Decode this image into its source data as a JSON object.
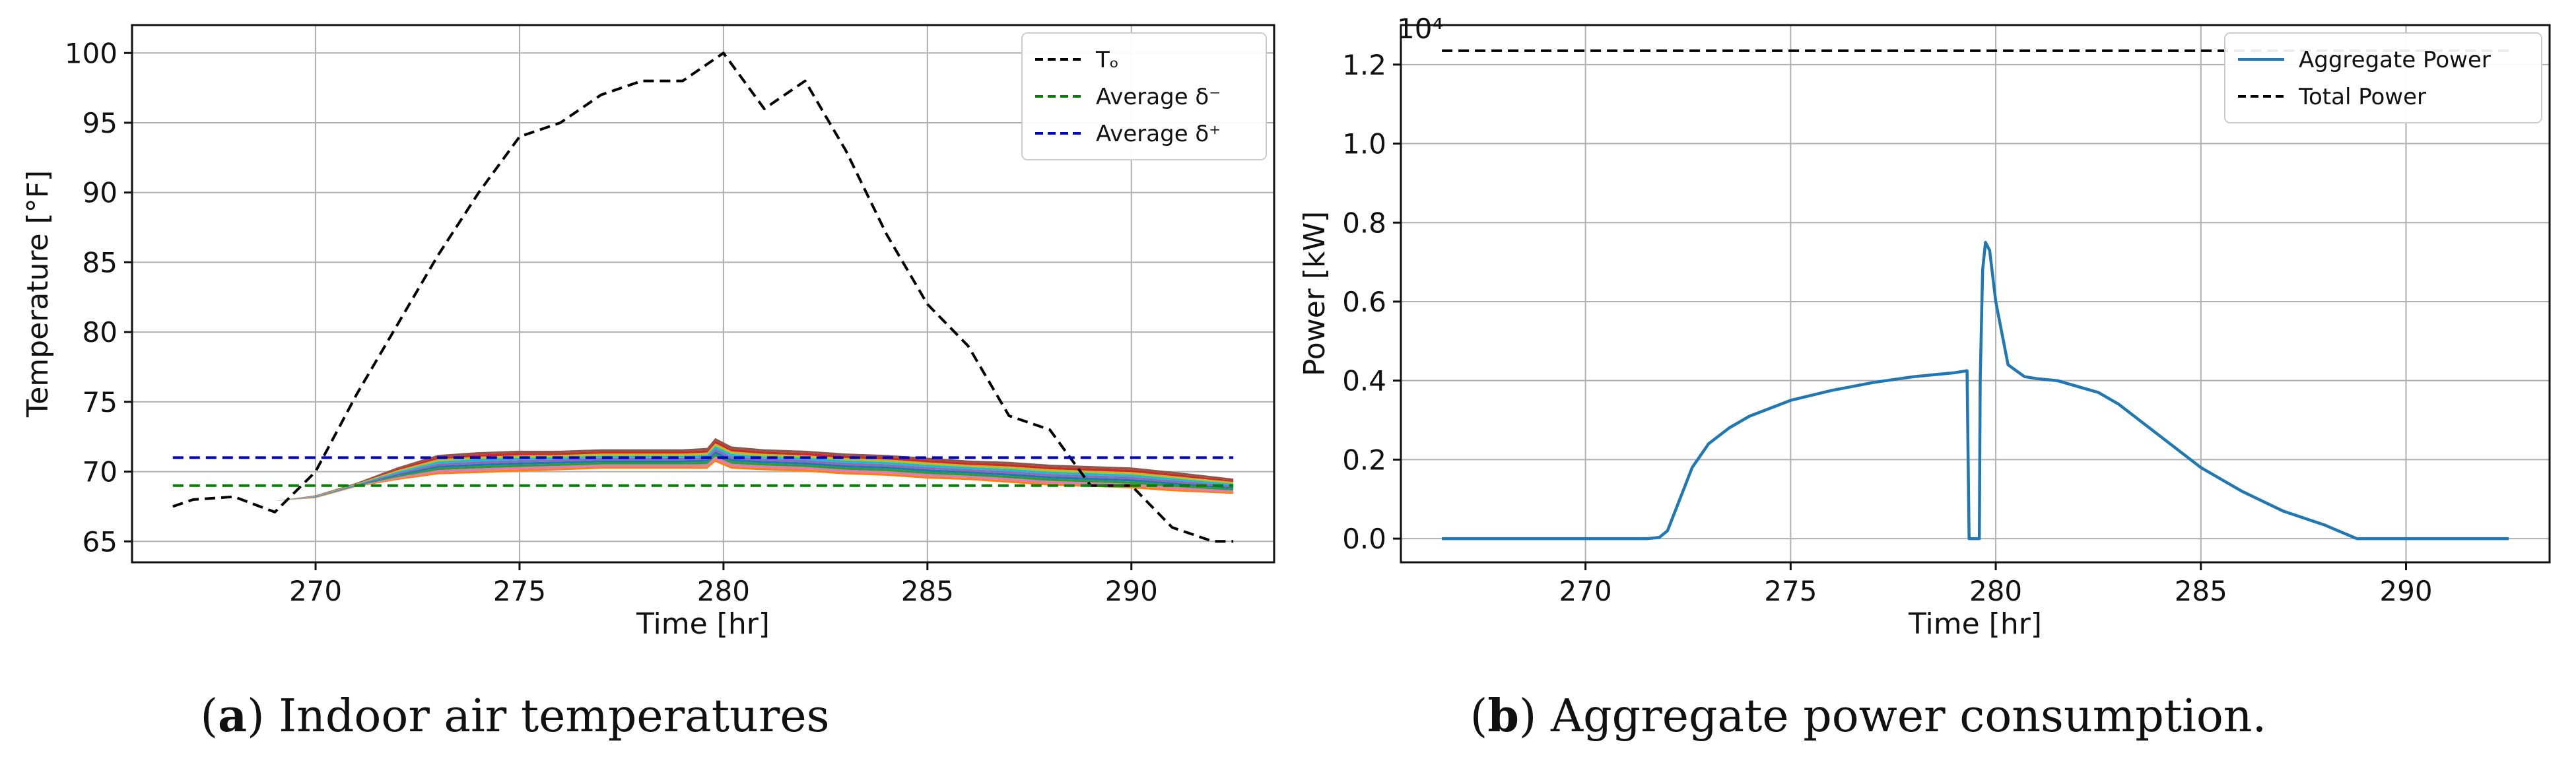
{
  "chart_data": [
    {
      "type": "line",
      "caption_label": "a",
      "caption_text": "Indoor air temperatures",
      "xlabel": "Time [hr]",
      "ylabel": "Temperature [°F]",
      "xlim": [
        265.5,
        293.5
      ],
      "ylim": [
        63.5,
        102
      ],
      "xticks": [
        270,
        275,
        280,
        285,
        290
      ],
      "yticks": [
        65,
        70,
        75,
        80,
        85,
        90,
        95,
        100
      ],
      "grid": true,
      "legend_position": "top-right",
      "legend": [
        {
          "label": "Tₒ",
          "color": "#000000",
          "dash": "dashed"
        },
        {
          "label": "Average δ⁻",
          "color": "#008000",
          "dash": "dashed"
        },
        {
          "label": "Average δ⁺",
          "color": "#0000cc",
          "dash": "dashed"
        }
      ],
      "series": [
        {
          "name": "Tₒ",
          "color": "#000000",
          "dash": "dashed",
          "x": [
            266.5,
            267,
            268,
            269,
            270,
            271,
            272,
            273,
            274,
            275,
            276,
            277,
            278,
            279,
            280,
            281,
            282,
            283,
            284,
            285,
            286,
            287,
            288,
            289,
            290,
            291,
            292,
            292.5
          ],
          "y": [
            67.5,
            68,
            68.2,
            67.1,
            70,
            75.5,
            80.5,
            85.5,
            90,
            94,
            95,
            97,
            98,
            98,
            100,
            96,
            98,
            93,
            87,
            82,
            79,
            74,
            73,
            69,
            69,
            66,
            65,
            65
          ]
        },
        {
          "name": "Average δ⁻",
          "color": "#008000",
          "dash": "dashed",
          "x": [
            266.5,
            292.5
          ],
          "y": [
            69,
            69
          ]
        },
        {
          "name": "Average δ⁺",
          "color": "#0000cc",
          "dash": "dashed",
          "x": [
            266.5,
            292.5
          ],
          "y": [
            71,
            71
          ]
        }
      ],
      "band": {
        "colors": [
          "#ff7f0e",
          "#e377c2",
          "#2ca02c",
          "#1f77b4",
          "#9467bd",
          "#17becf",
          "#bcbd22",
          "#d62728",
          "#8c564b"
        ],
        "x": [
          266.5,
          268,
          269,
          270,
          271,
          272,
          273,
          274,
          275,
          276,
          277,
          278,
          279,
          279.6,
          279.8,
          280.2,
          281,
          282,
          283,
          284,
          285,
          286,
          287,
          288,
          289,
          290,
          291,
          292.5
        ],
        "upper": [
          67.9,
          67.9,
          67.9,
          68.3,
          69.2,
          70.3,
          71.2,
          71.4,
          71.5,
          71.5,
          71.6,
          71.6,
          71.6,
          71.7,
          72.4,
          71.8,
          71.6,
          71.5,
          71.3,
          71.2,
          71.0,
          70.8,
          70.7,
          70.5,
          70.4,
          70.3,
          70.0,
          69.5
        ],
        "lower": [
          67.9,
          67.9,
          67.9,
          68.1,
          68.9,
          69.4,
          69.8,
          69.9,
          70.0,
          70.1,
          70.2,
          70.2,
          70.2,
          70.2,
          70.7,
          70.2,
          70.1,
          70.0,
          69.8,
          69.7,
          69.5,
          69.4,
          69.2,
          69.0,
          68.9,
          68.8,
          68.6,
          68.4
        ]
      }
    },
    {
      "type": "line",
      "caption_label": "b",
      "caption_text": "Aggregate power consumption.",
      "xlabel": "Time [hr]",
      "ylabel": "Power [kW]",
      "scale_label": "10⁴",
      "xlim": [
        265.5,
        293.5
      ],
      "ylim": [
        -0.06,
        1.3
      ],
      "xticks": [
        270,
        275,
        280,
        285,
        290
      ],
      "yticks": [
        0.0,
        0.2,
        0.4,
        0.6,
        0.8,
        1.0,
        1.2
      ],
      "ytick_labels": [
        "0.0",
        "0.2",
        "0.4",
        "0.6",
        "0.8",
        "1.0",
        "1.2"
      ],
      "grid": true,
      "legend_position": "top-right",
      "legend": [
        {
          "label": "Aggregate Power",
          "color": "#1f77b4",
          "dash": "solid"
        },
        {
          "label": "Total Power",
          "color": "#000000",
          "dash": "dashed"
        }
      ],
      "series": [
        {
          "name": "Aggregate Power",
          "color": "#1f77b4",
          "dash": "solid",
          "x": [
            266.5,
            271.5,
            271.8,
            272.0,
            272.3,
            272.6,
            273.0,
            273.5,
            274.0,
            275.0,
            276.0,
            277.0,
            278.0,
            279.0,
            279.3,
            279.35,
            279.6,
            279.62,
            279.68,
            279.75,
            279.85,
            280.0,
            280.3,
            280.7,
            281.0,
            281.5,
            282.0,
            282.5,
            283.0,
            284.0,
            285.0,
            286.0,
            287.0,
            288.0,
            288.8,
            290.0,
            292.5
          ],
          "y": [
            0.0,
            0.0,
            0.003,
            0.02,
            0.1,
            0.18,
            0.24,
            0.28,
            0.31,
            0.35,
            0.375,
            0.395,
            0.41,
            0.42,
            0.425,
            0.0,
            0.0,
            0.4,
            0.68,
            0.75,
            0.73,
            0.6,
            0.44,
            0.41,
            0.405,
            0.4,
            0.385,
            0.37,
            0.34,
            0.26,
            0.18,
            0.12,
            0.07,
            0.035,
            0.0,
            0.0,
            0.0
          ]
        },
        {
          "name": "Total Power",
          "color": "#000000",
          "dash": "dashed",
          "x": [
            266.5,
            292.5
          ],
          "y": [
            1.235,
            1.235
          ]
        }
      ]
    }
  ]
}
